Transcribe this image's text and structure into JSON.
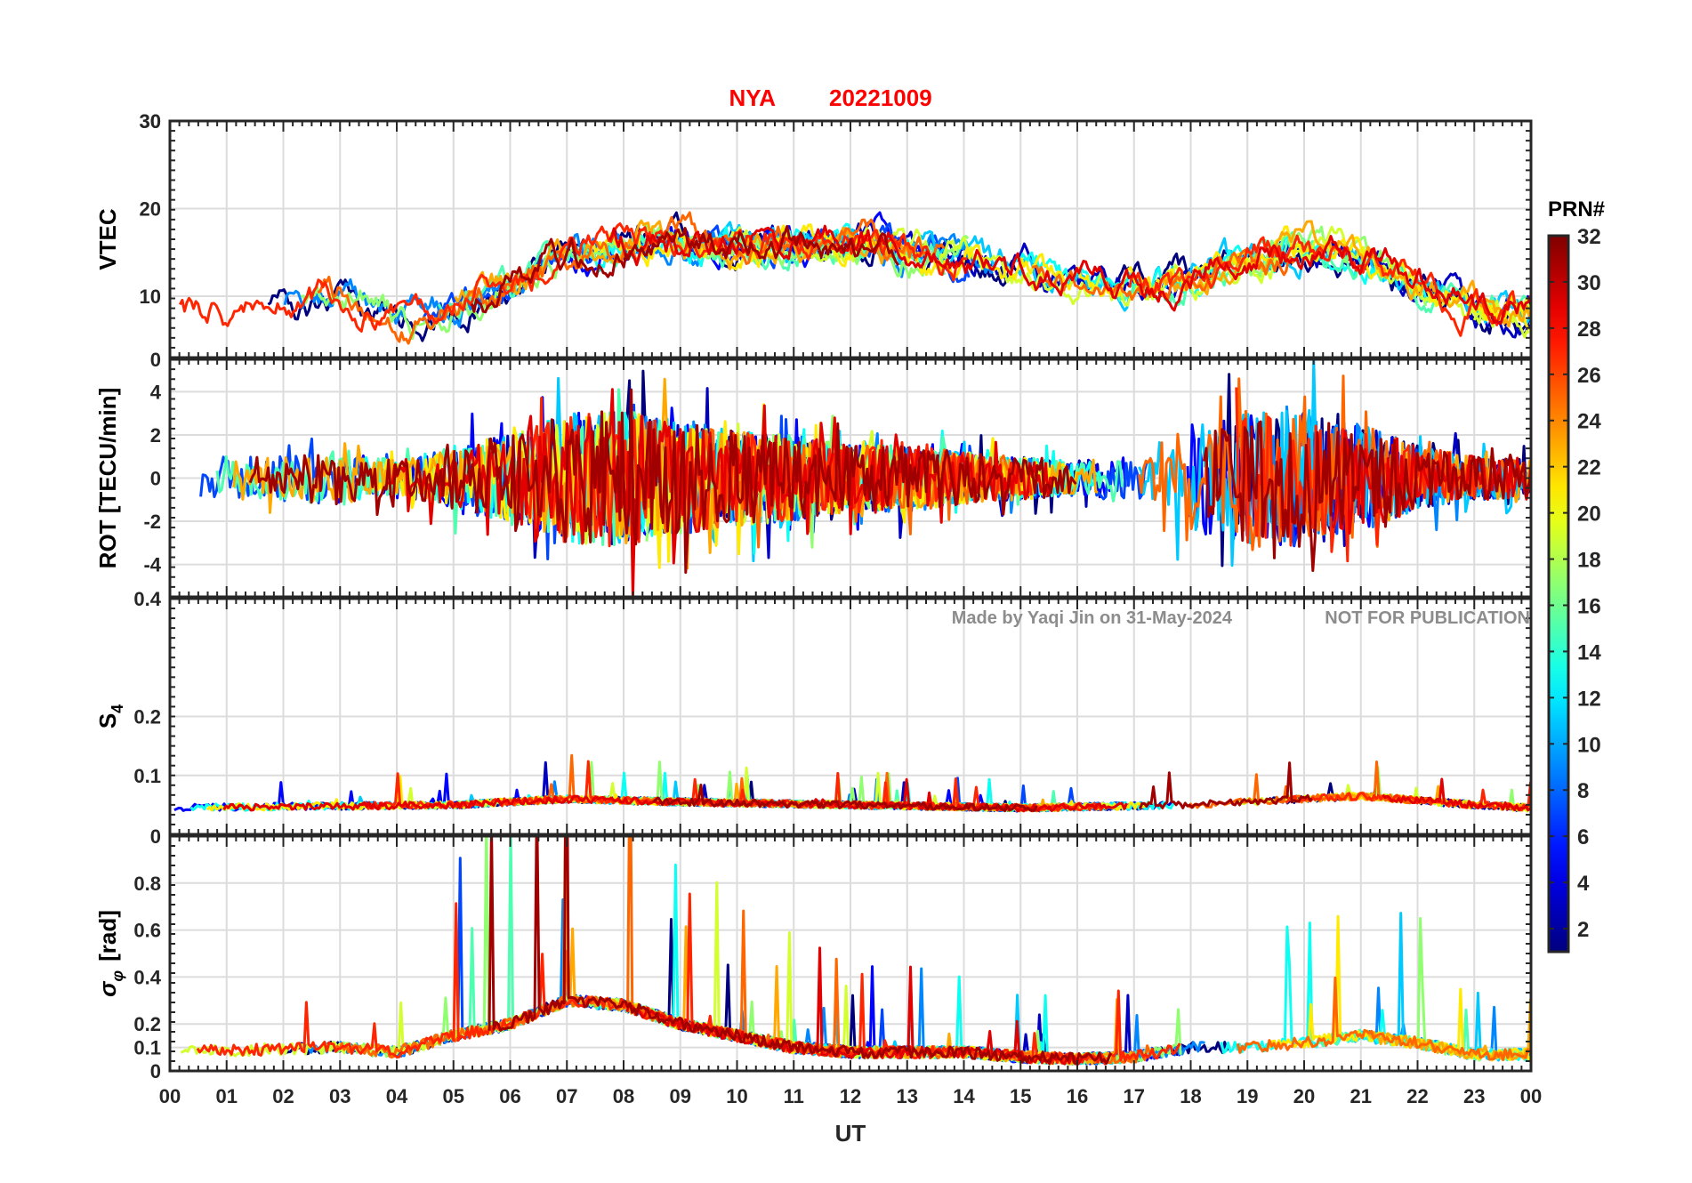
{
  "chart_data": {
    "type": "line",
    "title_station": "NYA",
    "title_date": "20221009",
    "xlabel": "UT",
    "x_range_hours": [
      0,
      24
    ],
    "x_tick_labels": [
      "00",
      "01",
      "02",
      "03",
      "04",
      "05",
      "06",
      "07",
      "08",
      "09",
      "10",
      "11",
      "12",
      "13",
      "14",
      "15",
      "16",
      "17",
      "18",
      "19",
      "20",
      "21",
      "22",
      "23",
      "00"
    ],
    "watermark_author": "Made by Yaqi Jin on 31-May-2024",
    "watermark_notice": "NOT FOR PUBLICATION",
    "colorbar": {
      "title": "PRN#",
      "range": [
        1,
        32
      ],
      "tick_labels": [
        "2",
        "4",
        "6",
        "8",
        "10",
        "12",
        "14",
        "16",
        "18",
        "20",
        "22",
        "24",
        "26",
        "28",
        "30",
        "32"
      ],
      "colormap": "jet",
      "colors": [
        "#00007f",
        "#0000ff",
        "#007fff",
        "#00ffff",
        "#7fff7f",
        "#ffff00",
        "#ff7f00",
        "#ff0000",
        "#7f0000"
      ]
    },
    "panels": [
      {
        "key": "vtec",
        "ylabel": "VTEC",
        "ylim": [
          3,
          30
        ],
        "y_ticks": [
          10,
          20,
          30
        ],
        "y_tick_labels": [
          "10",
          "20",
          "30"
        ],
        "envelope_mean": [
          [
            0,
            8
          ],
          [
            1,
            8.5
          ],
          [
            2,
            9
          ],
          [
            3,
            10
          ],
          [
            4,
            7
          ],
          [
            5,
            9
          ],
          [
            6,
            12
          ],
          [
            7,
            15
          ],
          [
            8,
            16
          ],
          [
            9,
            16
          ],
          [
            10,
            16
          ],
          [
            11,
            16
          ],
          [
            12,
            16
          ],
          [
            13,
            15
          ],
          [
            14,
            14
          ],
          [
            15,
            13
          ],
          [
            16,
            11
          ],
          [
            17,
            11
          ],
          [
            18,
            12
          ],
          [
            19,
            15
          ],
          [
            20,
            15
          ],
          [
            21,
            14
          ],
          [
            22,
            10
          ],
          [
            23,
            8
          ],
          [
            24,
            8
          ]
        ],
        "noise": 2.2,
        "seed_base": 11
      },
      {
        "key": "rot",
        "ylabel": "ROT [TECU/min]",
        "ylim": [
          -5.5,
          5.5
        ],
        "y_ticks": [
          -4,
          -2,
          0,
          2,
          4
        ],
        "y_tick_labels": [
          "-4",
          "-2",
          "0",
          "2",
          "4"
        ],
        "envelope_amp": [
          [
            0,
            1.0
          ],
          [
            1,
            1.0
          ],
          [
            2,
            1.0
          ],
          [
            3,
            1.3
          ],
          [
            4,
            0.8
          ],
          [
            5,
            1.5
          ],
          [
            6,
            2.0
          ],
          [
            7,
            3.0
          ],
          [
            8,
            3.2
          ],
          [
            9,
            2.6
          ],
          [
            10,
            2.2
          ],
          [
            11,
            2.0
          ],
          [
            12,
            1.5
          ],
          [
            13,
            1.6
          ],
          [
            14,
            1.2
          ],
          [
            15,
            1.0
          ],
          [
            16,
            0.8
          ],
          [
            17,
            1.0
          ],
          [
            18,
            2.5
          ],
          [
            19,
            3.0
          ],
          [
            20,
            3.2
          ],
          [
            21,
            2.5
          ],
          [
            22,
            1.5
          ],
          [
            23,
            1.0
          ],
          [
            24,
            1.0
          ]
        ],
        "seed_base": 23
      },
      {
        "key": "s4",
        "ylabel": "S4",
        "ylabel_main": "S",
        "ylabel_sub": "4",
        "ylim": [
          0,
          0.4
        ],
        "y_ticks": [
          0.1,
          0.2
        ],
        "y_tick_labels": [
          "0.1",
          "0.2"
        ],
        "envelope_mean": [
          [
            0,
            0.045
          ],
          [
            5,
            0.05
          ],
          [
            7,
            0.06
          ],
          [
            9,
            0.055
          ],
          [
            12,
            0.05
          ],
          [
            15,
            0.045
          ],
          [
            18,
            0.05
          ],
          [
            20,
            0.06
          ],
          [
            21,
            0.065
          ],
          [
            23,
            0.05
          ],
          [
            24,
            0.045
          ]
        ],
        "noise": 0.012,
        "seed_base": 37
      },
      {
        "key": "sigma_phi",
        "ylabel": "σφ [rad]",
        "ylabel_main": "σ",
        "ylabel_sub": "φ",
        "ylabel_unit": "[rad]",
        "ylim": [
          0,
          1.0
        ],
        "y_ticks": [
          0.1,
          0.2,
          0.4,
          0.6,
          0.8
        ],
        "y_tick_labels": [
          "0.1",
          "0.2",
          "0.4",
          "0.6",
          "0.8"
        ],
        "envelope_mean": [
          [
            0,
            0.08
          ],
          [
            3,
            0.1
          ],
          [
            4,
            0.08
          ],
          [
            5,
            0.15
          ],
          [
            6,
            0.2
          ],
          [
            7,
            0.3
          ],
          [
            8,
            0.28
          ],
          [
            9,
            0.2
          ],
          [
            10,
            0.15
          ],
          [
            11,
            0.1
          ],
          [
            12,
            0.08
          ],
          [
            14,
            0.08
          ],
          [
            15,
            0.06
          ],
          [
            16,
            0.05
          ],
          [
            17,
            0.06
          ],
          [
            18,
            0.1
          ],
          [
            19,
            0.1
          ],
          [
            20,
            0.12
          ],
          [
            21,
            0.15
          ],
          [
            22,
            0.12
          ],
          [
            23,
            0.07
          ],
          [
            24,
            0.07
          ]
        ],
        "noise": 0.05,
        "seed_base": 51
      }
    ],
    "panel_top_labels": [
      "30",
      "0",
      "0.4",
      "0"
    ],
    "panel_bottom_zero_label": "0",
    "prn_series": [
      1,
      3,
      5,
      7,
      9,
      11,
      13,
      15,
      17,
      19,
      21,
      23,
      25,
      27,
      29,
      31
    ]
  }
}
